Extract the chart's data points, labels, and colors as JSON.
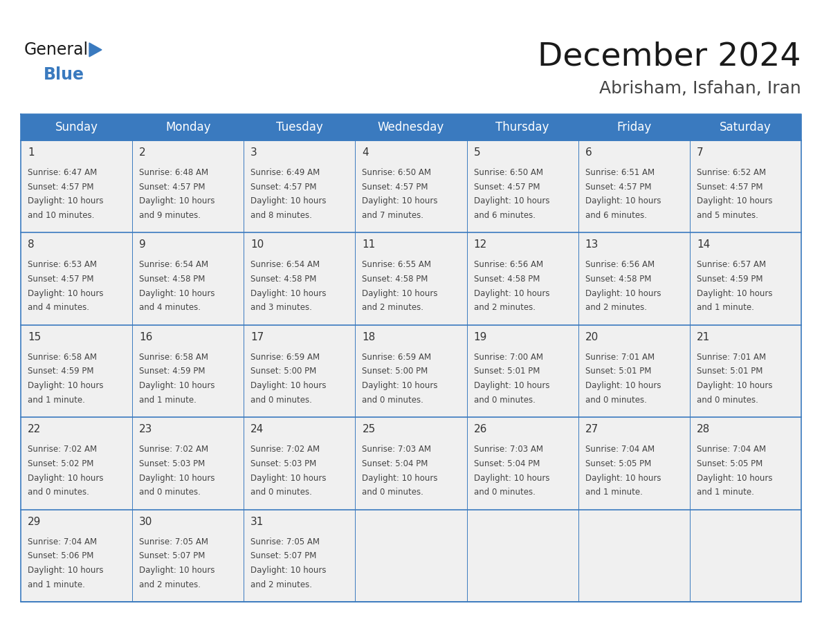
{
  "title": "December 2024",
  "subtitle": "Abrisham, Isfahan, Iran",
  "header_color": "#3a7abf",
  "header_text_color": "#ffffff",
  "cell_bg_color": "#f0f0f0",
  "grid_line_color": "#3a7abf",
  "day_num_color": "#333333",
  "cell_text_color": "#444444",
  "weekdays": [
    "Sunday",
    "Monday",
    "Tuesday",
    "Wednesday",
    "Thursday",
    "Friday",
    "Saturday"
  ],
  "days": [
    {
      "day": 1,
      "col": 0,
      "row": 0,
      "sunrise": "6:47 AM",
      "sunset": "4:57 PM",
      "daylight_line1": "Daylight: 10 hours",
      "daylight_line2": "and 10 minutes."
    },
    {
      "day": 2,
      "col": 1,
      "row": 0,
      "sunrise": "6:48 AM",
      "sunset": "4:57 PM",
      "daylight_line1": "Daylight: 10 hours",
      "daylight_line2": "and 9 minutes."
    },
    {
      "day": 3,
      "col": 2,
      "row": 0,
      "sunrise": "6:49 AM",
      "sunset": "4:57 PM",
      "daylight_line1": "Daylight: 10 hours",
      "daylight_line2": "and 8 minutes."
    },
    {
      "day": 4,
      "col": 3,
      "row": 0,
      "sunrise": "6:50 AM",
      "sunset": "4:57 PM",
      "daylight_line1": "Daylight: 10 hours",
      "daylight_line2": "and 7 minutes."
    },
    {
      "day": 5,
      "col": 4,
      "row": 0,
      "sunrise": "6:50 AM",
      "sunset": "4:57 PM",
      "daylight_line1": "Daylight: 10 hours",
      "daylight_line2": "and 6 minutes."
    },
    {
      "day": 6,
      "col": 5,
      "row": 0,
      "sunrise": "6:51 AM",
      "sunset": "4:57 PM",
      "daylight_line1": "Daylight: 10 hours",
      "daylight_line2": "and 6 minutes."
    },
    {
      "day": 7,
      "col": 6,
      "row": 0,
      "sunrise": "6:52 AM",
      "sunset": "4:57 PM",
      "daylight_line1": "Daylight: 10 hours",
      "daylight_line2": "and 5 minutes."
    },
    {
      "day": 8,
      "col": 0,
      "row": 1,
      "sunrise": "6:53 AM",
      "sunset": "4:57 PM",
      "daylight_line1": "Daylight: 10 hours",
      "daylight_line2": "and 4 minutes."
    },
    {
      "day": 9,
      "col": 1,
      "row": 1,
      "sunrise": "6:54 AM",
      "sunset": "4:58 PM",
      "daylight_line1": "Daylight: 10 hours",
      "daylight_line2": "and 4 minutes."
    },
    {
      "day": 10,
      "col": 2,
      "row": 1,
      "sunrise": "6:54 AM",
      "sunset": "4:58 PM",
      "daylight_line1": "Daylight: 10 hours",
      "daylight_line2": "and 3 minutes."
    },
    {
      "day": 11,
      "col": 3,
      "row": 1,
      "sunrise": "6:55 AM",
      "sunset": "4:58 PM",
      "daylight_line1": "Daylight: 10 hours",
      "daylight_line2": "and 2 minutes."
    },
    {
      "day": 12,
      "col": 4,
      "row": 1,
      "sunrise": "6:56 AM",
      "sunset": "4:58 PM",
      "daylight_line1": "Daylight: 10 hours",
      "daylight_line2": "and 2 minutes."
    },
    {
      "day": 13,
      "col": 5,
      "row": 1,
      "sunrise": "6:56 AM",
      "sunset": "4:58 PM",
      "daylight_line1": "Daylight: 10 hours",
      "daylight_line2": "and 2 minutes."
    },
    {
      "day": 14,
      "col": 6,
      "row": 1,
      "sunrise": "6:57 AM",
      "sunset": "4:59 PM",
      "daylight_line1": "Daylight: 10 hours",
      "daylight_line2": "and 1 minute."
    },
    {
      "day": 15,
      "col": 0,
      "row": 2,
      "sunrise": "6:58 AM",
      "sunset": "4:59 PM",
      "daylight_line1": "Daylight: 10 hours",
      "daylight_line2": "and 1 minute."
    },
    {
      "day": 16,
      "col": 1,
      "row": 2,
      "sunrise": "6:58 AM",
      "sunset": "4:59 PM",
      "daylight_line1": "Daylight: 10 hours",
      "daylight_line2": "and 1 minute."
    },
    {
      "day": 17,
      "col": 2,
      "row": 2,
      "sunrise": "6:59 AM",
      "sunset": "5:00 PM",
      "daylight_line1": "Daylight: 10 hours",
      "daylight_line2": "and 0 minutes."
    },
    {
      "day": 18,
      "col": 3,
      "row": 2,
      "sunrise": "6:59 AM",
      "sunset": "5:00 PM",
      "daylight_line1": "Daylight: 10 hours",
      "daylight_line2": "and 0 minutes."
    },
    {
      "day": 19,
      "col": 4,
      "row": 2,
      "sunrise": "7:00 AM",
      "sunset": "5:01 PM",
      "daylight_line1": "Daylight: 10 hours",
      "daylight_line2": "and 0 minutes."
    },
    {
      "day": 20,
      "col": 5,
      "row": 2,
      "sunrise": "7:01 AM",
      "sunset": "5:01 PM",
      "daylight_line1": "Daylight: 10 hours",
      "daylight_line2": "and 0 minutes."
    },
    {
      "day": 21,
      "col": 6,
      "row": 2,
      "sunrise": "7:01 AM",
      "sunset": "5:01 PM",
      "daylight_line1": "Daylight: 10 hours",
      "daylight_line2": "and 0 minutes."
    },
    {
      "day": 22,
      "col": 0,
      "row": 3,
      "sunrise": "7:02 AM",
      "sunset": "5:02 PM",
      "daylight_line1": "Daylight: 10 hours",
      "daylight_line2": "and 0 minutes."
    },
    {
      "day": 23,
      "col": 1,
      "row": 3,
      "sunrise": "7:02 AM",
      "sunset": "5:03 PM",
      "daylight_line1": "Daylight: 10 hours",
      "daylight_line2": "and 0 minutes."
    },
    {
      "day": 24,
      "col": 2,
      "row": 3,
      "sunrise": "7:02 AM",
      "sunset": "5:03 PM",
      "daylight_line1": "Daylight: 10 hours",
      "daylight_line2": "and 0 minutes."
    },
    {
      "day": 25,
      "col": 3,
      "row": 3,
      "sunrise": "7:03 AM",
      "sunset": "5:04 PM",
      "daylight_line1": "Daylight: 10 hours",
      "daylight_line2": "and 0 minutes."
    },
    {
      "day": 26,
      "col": 4,
      "row": 3,
      "sunrise": "7:03 AM",
      "sunset": "5:04 PM",
      "daylight_line1": "Daylight: 10 hours",
      "daylight_line2": "and 0 minutes."
    },
    {
      "day": 27,
      "col": 5,
      "row": 3,
      "sunrise": "7:04 AM",
      "sunset": "5:05 PM",
      "daylight_line1": "Daylight: 10 hours",
      "daylight_line2": "and 1 minute."
    },
    {
      "day": 28,
      "col": 6,
      "row": 3,
      "sunrise": "7:04 AM",
      "sunset": "5:05 PM",
      "daylight_line1": "Daylight: 10 hours",
      "daylight_line2": "and 1 minute."
    },
    {
      "day": 29,
      "col": 0,
      "row": 4,
      "sunrise": "7:04 AM",
      "sunset": "5:06 PM",
      "daylight_line1": "Daylight: 10 hours",
      "daylight_line2": "and 1 minute."
    },
    {
      "day": 30,
      "col": 1,
      "row": 4,
      "sunrise": "7:05 AM",
      "sunset": "5:07 PM",
      "daylight_line1": "Daylight: 10 hours",
      "daylight_line2": "and 2 minutes."
    },
    {
      "day": 31,
      "col": 2,
      "row": 4,
      "sunrise": "7:05 AM",
      "sunset": "5:07 PM",
      "daylight_line1": "Daylight: 10 hours",
      "daylight_line2": "and 2 minutes."
    }
  ],
  "num_rows": 5,
  "logo_text_general": "General",
  "logo_text_blue": "Blue",
  "logo_triangle_color": "#3a7abf",
  "logo_general_color": "#1a1a1a",
  "logo_blue_color": "#3a7abf",
  "title_fontsize": 34,
  "subtitle_fontsize": 18,
  "header_fontsize": 12,
  "day_num_fontsize": 11,
  "cell_text_fontsize": 8.5
}
